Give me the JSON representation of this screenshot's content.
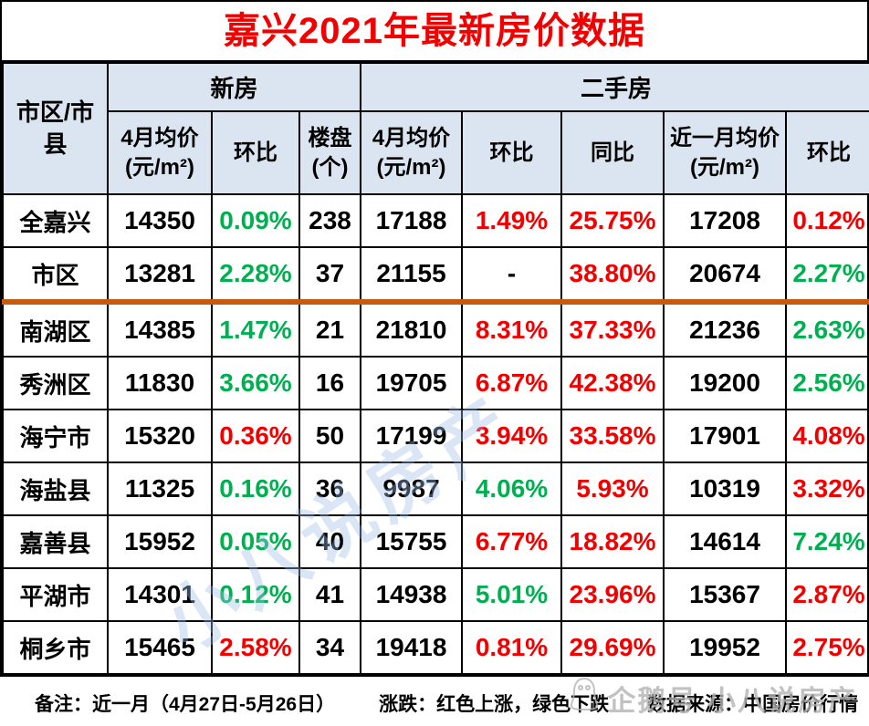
{
  "title": "嘉兴2021年最新房价数据",
  "colors": {
    "up": "#f20000",
    "down": "#00b050",
    "title": "#f20000",
    "header_bg": "#dbe5f1",
    "grid": "#000000",
    "divider": "#c55a11",
    "wm_blue": "#9fc0e8",
    "wm_gray": "#b3b3b3"
  },
  "header": {
    "row_label": "市区/市县",
    "groups": [
      {
        "label": "新房"
      },
      {
        "label": "二手房"
      }
    ],
    "columns": [
      "4月均价(元/m²)",
      "环比",
      "楼盘(个)",
      "4月均价(元/m²)",
      "环比",
      "同比",
      "近一月均价(元/m²)",
      "环比"
    ]
  },
  "table": {
    "rows": [
      {
        "name": "全嘉兴",
        "divider": false,
        "cells": [
          {
            "v": "14350",
            "c": "k"
          },
          {
            "v": "0.09%",
            "c": "g"
          },
          {
            "v": "238",
            "c": "k"
          },
          {
            "v": "17188",
            "c": "k"
          },
          {
            "v": "1.49%",
            "c": "r"
          },
          {
            "v": "25.75%",
            "c": "r"
          },
          {
            "v": "17208",
            "c": "k"
          },
          {
            "v": "0.12%",
            "c": "r"
          }
        ]
      },
      {
        "name": "市区",
        "divider": false,
        "cells": [
          {
            "v": "13281",
            "c": "k"
          },
          {
            "v": "2.28%",
            "c": "g"
          },
          {
            "v": "37",
            "c": "k"
          },
          {
            "v": "21155",
            "c": "k"
          },
          {
            "v": "-",
            "c": "k"
          },
          {
            "v": "38.80%",
            "c": "r"
          },
          {
            "v": "20674",
            "c": "k"
          },
          {
            "v": "2.27%",
            "c": "g"
          }
        ]
      },
      {
        "name": "南湖区",
        "divider": true,
        "cells": [
          {
            "v": "14385",
            "c": "k"
          },
          {
            "v": "1.47%",
            "c": "g"
          },
          {
            "v": "21",
            "c": "k"
          },
          {
            "v": "21810",
            "c": "k"
          },
          {
            "v": "8.31%",
            "c": "r"
          },
          {
            "v": "37.33%",
            "c": "r"
          },
          {
            "v": "21236",
            "c": "k"
          },
          {
            "v": "2.63%",
            "c": "g"
          }
        ]
      },
      {
        "name": "秀洲区",
        "divider": false,
        "cells": [
          {
            "v": "11830",
            "c": "k"
          },
          {
            "v": "3.66%",
            "c": "g"
          },
          {
            "v": "16",
            "c": "k"
          },
          {
            "v": "19705",
            "c": "k"
          },
          {
            "v": "6.87%",
            "c": "r"
          },
          {
            "v": "42.38%",
            "c": "r"
          },
          {
            "v": "19200",
            "c": "k"
          },
          {
            "v": "2.56%",
            "c": "g"
          }
        ]
      },
      {
        "name": "海宁市",
        "divider": false,
        "cells": [
          {
            "v": "15320",
            "c": "k"
          },
          {
            "v": "0.36%",
            "c": "r"
          },
          {
            "v": "50",
            "c": "k"
          },
          {
            "v": "17199",
            "c": "k"
          },
          {
            "v": "3.94%",
            "c": "r"
          },
          {
            "v": "33.58%",
            "c": "r"
          },
          {
            "v": "17901",
            "c": "k"
          },
          {
            "v": "4.08%",
            "c": "r"
          }
        ]
      },
      {
        "name": "海盐县",
        "divider": false,
        "cells": [
          {
            "v": "11325",
            "c": "k"
          },
          {
            "v": "0.16%",
            "c": "g"
          },
          {
            "v": "36",
            "c": "k"
          },
          {
            "v": "9987",
            "c": "k"
          },
          {
            "v": "4.06%",
            "c": "g"
          },
          {
            "v": "5.93%",
            "c": "r"
          },
          {
            "v": "10319",
            "c": "k"
          },
          {
            "v": "3.32%",
            "c": "r"
          }
        ]
      },
      {
        "name": "嘉善县",
        "divider": false,
        "cells": [
          {
            "v": "15952",
            "c": "k"
          },
          {
            "v": "0.05%",
            "c": "g"
          },
          {
            "v": "40",
            "c": "k"
          },
          {
            "v": "15755",
            "c": "k"
          },
          {
            "v": "6.77%",
            "c": "r"
          },
          {
            "v": "18.82%",
            "c": "r"
          },
          {
            "v": "14614",
            "c": "k"
          },
          {
            "v": "7.24%",
            "c": "g"
          }
        ]
      },
      {
        "name": "平湖市",
        "divider": false,
        "cells": [
          {
            "v": "14301",
            "c": "k"
          },
          {
            "v": "0.12%",
            "c": "g"
          },
          {
            "v": "41",
            "c": "k"
          },
          {
            "v": "14938",
            "c": "k"
          },
          {
            "v": "5.01%",
            "c": "g"
          },
          {
            "v": "23.96%",
            "c": "r"
          },
          {
            "v": "15367",
            "c": "k"
          },
          {
            "v": "2.87%",
            "c": "r"
          }
        ]
      },
      {
        "name": "桐乡市",
        "divider": false,
        "cells": [
          {
            "v": "15465",
            "c": "k"
          },
          {
            "v": "2.58%",
            "c": "r"
          },
          {
            "v": "34",
            "c": "k"
          },
          {
            "v": "19418",
            "c": "k"
          },
          {
            "v": "0.81%",
            "c": "r"
          },
          {
            "v": "29.69%",
            "c": "r"
          },
          {
            "v": "19952",
            "c": "k"
          },
          {
            "v": "2.75%",
            "c": "r"
          }
        ]
      }
    ]
  },
  "footer": {
    "note": "备注：近一月（4月27日-5月26日）",
    "legend": "涨跌：红色上涨，绿色下跌",
    "source": "数据来源：中国房价行情"
  },
  "watermarks": {
    "diagonal": "小八说房产",
    "badge": "企鹅号 小八说房产"
  },
  "chart_data": {
    "type": "table",
    "title": "嘉兴2021年最新房价数据",
    "column_groups": [
      {
        "label": "新房",
        "columns": [
          "4月均价(元/m²)",
          "环比",
          "楼盘(个)"
        ]
      },
      {
        "label": "二手房",
        "columns": [
          "4月均价(元/m²)",
          "环比",
          "同比",
          "近一月均价(元/m²)",
          "环比"
        ]
      }
    ],
    "row_header": "市区/市县",
    "columns": [
      "市区/市县",
      "新房4月均价(元/m²)",
      "新房环比",
      "楼盘(个)",
      "二手房4月均价(元/m²)",
      "二手房环比",
      "二手房同比",
      "近一月均价(元/m²)",
      "近一月环比"
    ],
    "rows": [
      [
        "全嘉兴",
        14350,
        "0.09%",
        238,
        17188,
        "1.49%",
        "25.75%",
        17208,
        "0.12%"
      ],
      [
        "市区",
        13281,
        "2.28%",
        37,
        21155,
        "-",
        "38.80%",
        20674,
        "2.27%"
      ],
      [
        "南湖区",
        14385,
        "1.47%",
        21,
        21810,
        "8.31%",
        "37.33%",
        21236,
        "2.63%"
      ],
      [
        "秀洲区",
        11830,
        "3.66%",
        16,
        19705,
        "6.87%",
        "42.38%",
        19200,
        "2.56%"
      ],
      [
        "海宁市",
        15320,
        "0.36%",
        50,
        17199,
        "3.94%",
        "33.58%",
        17901,
        "4.08%"
      ],
      [
        "海盐县",
        11325,
        "0.16%",
        36,
        9987,
        "4.06%",
        "5.93%",
        10319,
        "3.32%"
      ],
      [
        "嘉善县",
        15952,
        "0.05%",
        40,
        15755,
        "6.77%",
        "18.82%",
        14614,
        "7.24%"
      ],
      [
        "平湖市",
        14301,
        "0.12%",
        41,
        14938,
        "5.01%",
        "23.96%",
        15367,
        "2.87%"
      ],
      [
        "桐乡市",
        15465,
        "2.58%",
        34,
        19418,
        "0.81%",
        "29.69%",
        19952,
        "2.75%"
      ]
    ],
    "color_legend": "红色上涨，绿色下跌",
    "notes": "近一月（4月27日-5月26日）；数据来源：中国房价行情"
  }
}
